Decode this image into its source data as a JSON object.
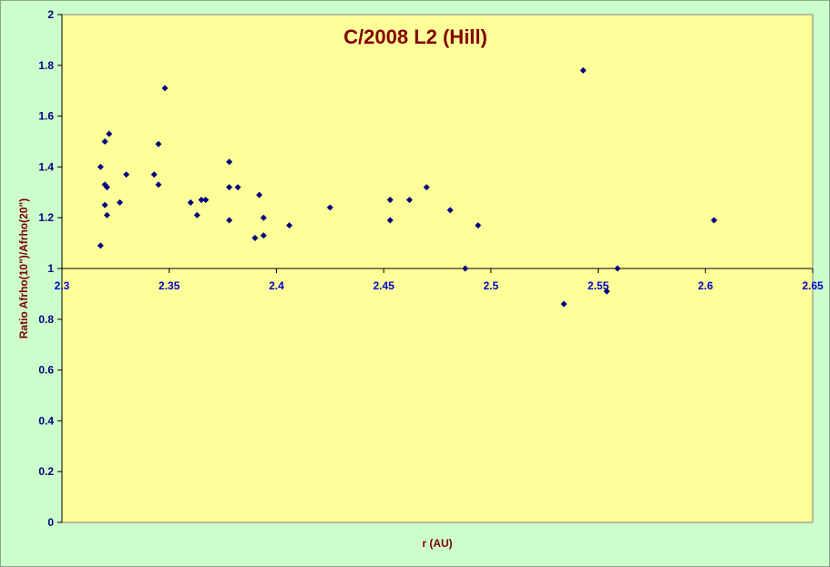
{
  "chart_data": {
    "type": "scatter",
    "title": "C/2008 L2 (Hill)",
    "xlabel": "r (AU)",
    "ylabel": "Ratio Afrho(10\")/Afrho(20\")",
    "xlim": [
      2.3,
      2.65
    ],
    "ylim": [
      0,
      2
    ],
    "x_ticks": [
      "2.3",
      "2.35",
      "2.4",
      "2.45",
      "2.5",
      "2.55",
      "2.6",
      "2.65"
    ],
    "y_ticks": [
      "0",
      "0.2",
      "0.4",
      "0.6",
      "0.8",
      "1",
      "1.2",
      "1.4",
      "1.6",
      "1.8",
      "2"
    ],
    "x_axis_crosses_at": 1,
    "grid": false,
    "legend": "none",
    "colors": {
      "plot_area": "#ffff99",
      "background": "#ccffcc",
      "marker": "#000080",
      "title": "#800000",
      "x_tick_labels": "#0000cc",
      "y_tick_labels": "#000080"
    },
    "points": [
      {
        "x": 2.318,
        "y": 1.4
      },
      {
        "x": 2.318,
        "y": 1.09
      },
      {
        "x": 2.32,
        "y": 1.25
      },
      {
        "x": 2.32,
        "y": 1.5
      },
      {
        "x": 2.32,
        "y": 1.33
      },
      {
        "x": 2.321,
        "y": 1.32
      },
      {
        "x": 2.321,
        "y": 1.21
      },
      {
        "x": 2.322,
        "y": 1.53
      },
      {
        "x": 2.327,
        "y": 1.26
      },
      {
        "x": 2.33,
        "y": 1.37
      },
      {
        "x": 2.343,
        "y": 1.37
      },
      {
        "x": 2.345,
        "y": 1.49
      },
      {
        "x": 2.345,
        "y": 1.33
      },
      {
        "x": 2.348,
        "y": 1.71
      },
      {
        "x": 2.36,
        "y": 1.26
      },
      {
        "x": 2.363,
        "y": 1.21
      },
      {
        "x": 2.365,
        "y": 1.27
      },
      {
        "x": 2.367,
        "y": 1.27
      },
      {
        "x": 2.378,
        "y": 1.42
      },
      {
        "x": 2.378,
        "y": 1.32
      },
      {
        "x": 2.378,
        "y": 1.19
      },
      {
        "x": 2.382,
        "y": 1.32
      },
      {
        "x": 2.39,
        "y": 1.12
      },
      {
        "x": 2.392,
        "y": 1.29
      },
      {
        "x": 2.394,
        "y": 1.2
      },
      {
        "x": 2.394,
        "y": 1.13
      },
      {
        "x": 2.406,
        "y": 1.17
      },
      {
        "x": 2.425,
        "y": 1.24
      },
      {
        "x": 2.453,
        "y": 1.27
      },
      {
        "x": 2.453,
        "y": 1.19
      },
      {
        "x": 2.462,
        "y": 1.27
      },
      {
        "x": 2.47,
        "y": 1.32
      },
      {
        "x": 2.481,
        "y": 1.23
      },
      {
        "x": 2.488,
        "y": 1.0
      },
      {
        "x": 2.494,
        "y": 1.17
      },
      {
        "x": 2.534,
        "y": 0.86
      },
      {
        "x": 2.543,
        "y": 1.78
      },
      {
        "x": 2.554,
        "y": 0.91
      },
      {
        "x": 2.559,
        "y": 1.0
      },
      {
        "x": 2.604,
        "y": 1.19
      }
    ]
  }
}
